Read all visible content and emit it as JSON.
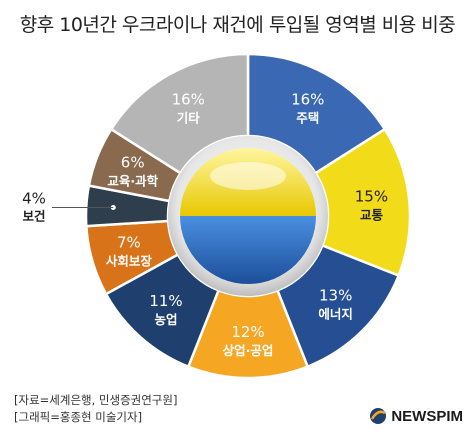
{
  "title": "향후 10년간 우크라이나 재건에 투입될 영역별 비용 비중",
  "chart_data": {
    "type": "pie",
    "title": "향후 10년간 우크라이나 재건에 투입될 영역별 비용 비중",
    "unit": "%",
    "slices": [
      {
        "label": "주택",
        "value": 16,
        "pct_text": "16%",
        "color": "#3b68b3"
      },
      {
        "label": "교통",
        "value": 15,
        "pct_text": "15%",
        "color": "#f2dc1a"
      },
      {
        "label": "에너지",
        "value": 13,
        "pct_text": "13%",
        "color": "#264f93"
      },
      {
        "label": "상업·공업",
        "value": 12,
        "pct_text": "12%",
        "color": "#f5a623"
      },
      {
        "label": "농업",
        "value": 11,
        "pct_text": "11%",
        "color": "#1f3f6e"
      },
      {
        "label": "사회보장",
        "value": 7,
        "pct_text": "7%",
        "color": "#d9731a"
      },
      {
        "label": "보건",
        "value": 4,
        "pct_text": "4%",
        "color": "#2e3e4d"
      },
      {
        "label": "교육·과학",
        "value": 6,
        "pct_text": "6%",
        "color": "#8a6a4e"
      },
      {
        "label": "기타",
        "value": 16,
        "pct_text": "16%",
        "color": "#b5b5b5"
      }
    ]
  },
  "sources": {
    "line1": "[자료=세계은행, 민생증권연구원]",
    "line2": "[그래픽=홍종현 미술기자]"
  },
  "brand": {
    "name": "NEWSPIM"
  }
}
